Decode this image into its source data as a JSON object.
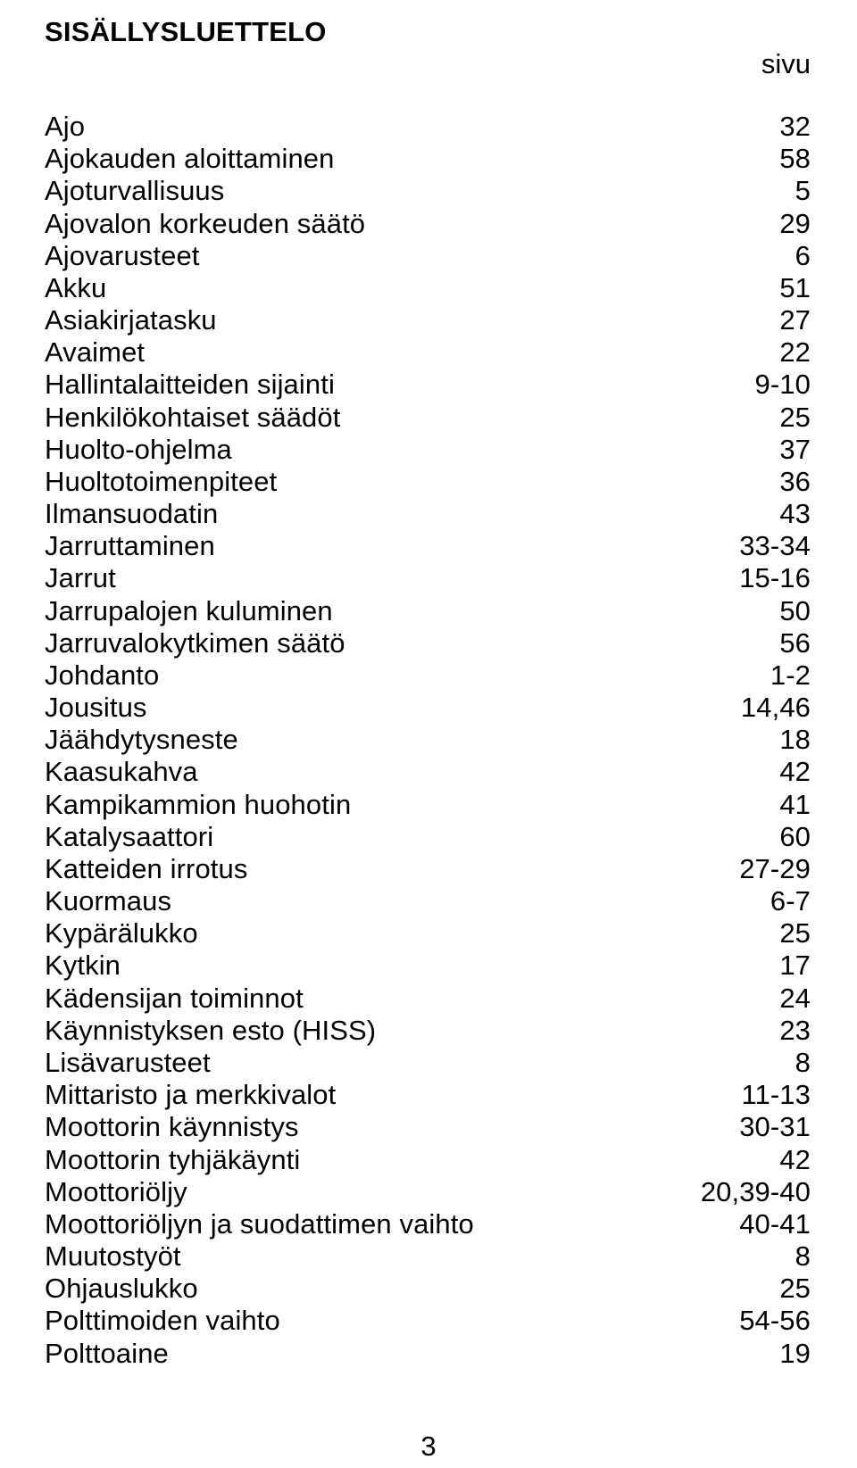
{
  "title": "SISÄLLYSLUETTELO",
  "page_label": "sivu",
  "footer_page_number": "3",
  "fontsize": 31,
  "font_family": "Arial",
  "text_color": "#000000",
  "background_color": "#ffffff",
  "entries": [
    {
      "label": "Ajo",
      "page": "32"
    },
    {
      "label": "Ajokauden aloittaminen",
      "page": "58"
    },
    {
      "label": "Ajoturvallisuus",
      "page": "5"
    },
    {
      "label": "Ajovalon korkeuden säätö",
      "page": "29"
    },
    {
      "label": "Ajovarusteet",
      "page": "6"
    },
    {
      "label": "Akku",
      "page": "51"
    },
    {
      "label": "Asiakirjatasku",
      "page": "27"
    },
    {
      "label": "Avaimet",
      "page": "22"
    },
    {
      "label": "Hallintalaitteiden sijainti",
      "page": "9-10"
    },
    {
      "label": "Henkilökohtaiset säädöt",
      "page": "25"
    },
    {
      "label": "Huolto-ohjelma",
      "page": "37"
    },
    {
      "label": "Huoltotoimenpiteet",
      "page": "36"
    },
    {
      "label": "Ilmansuodatin",
      "page": "43"
    },
    {
      "label": "Jarruttaminen",
      "page": "33-34"
    },
    {
      "label": "Jarrut",
      "page": "15-16"
    },
    {
      "label": "Jarrupalojen kuluminen",
      "page": "50"
    },
    {
      "label": "Jarruvalokytkimen säätö",
      "page": "56"
    },
    {
      "label": "Johdanto",
      "page": "1-2"
    },
    {
      "label": "Jousitus",
      "page": "14,46"
    },
    {
      "label": "Jäähdytysneste",
      "page": "18"
    },
    {
      "label": "Kaasukahva",
      "page": "42"
    },
    {
      "label": "Kampikammion huohotin",
      "page": "41"
    },
    {
      "label": "Katalysaattori",
      "page": "60"
    },
    {
      "label": "Katteiden irrotus",
      "page": "27-29"
    },
    {
      "label": "Kuormaus",
      "page": "6-7"
    },
    {
      "label": "Kypärälukko",
      "page": "25"
    },
    {
      "label": "Kytkin",
      "page": "17"
    },
    {
      "label": "Kädensijan toiminnot",
      "page": "24"
    },
    {
      "label": "Käynnistyksen esto (HISS)",
      "page": "23"
    },
    {
      "label": "Lisävarusteet",
      "page": "8"
    },
    {
      "label": "Mittaristo ja merkkivalot",
      "page": "11-13"
    },
    {
      "label": "Moottorin käynnistys",
      "page": "30-31"
    },
    {
      "label": "Moottorin tyhjäkäynti",
      "page": "42"
    },
    {
      "label": "Moottoriöljy",
      "page": "20,39-40"
    },
    {
      "label": "Moottoriöljyn ja suodattimen vaihto",
      "page": "40-41"
    },
    {
      "label": "Muutostyöt",
      "page": "8"
    },
    {
      "label": "Ohjauslukko",
      "page": "25"
    },
    {
      "label": "Polttimoiden vaihto",
      "page": "54-56"
    },
    {
      "label": "Polttoaine",
      "page": "19"
    }
  ]
}
